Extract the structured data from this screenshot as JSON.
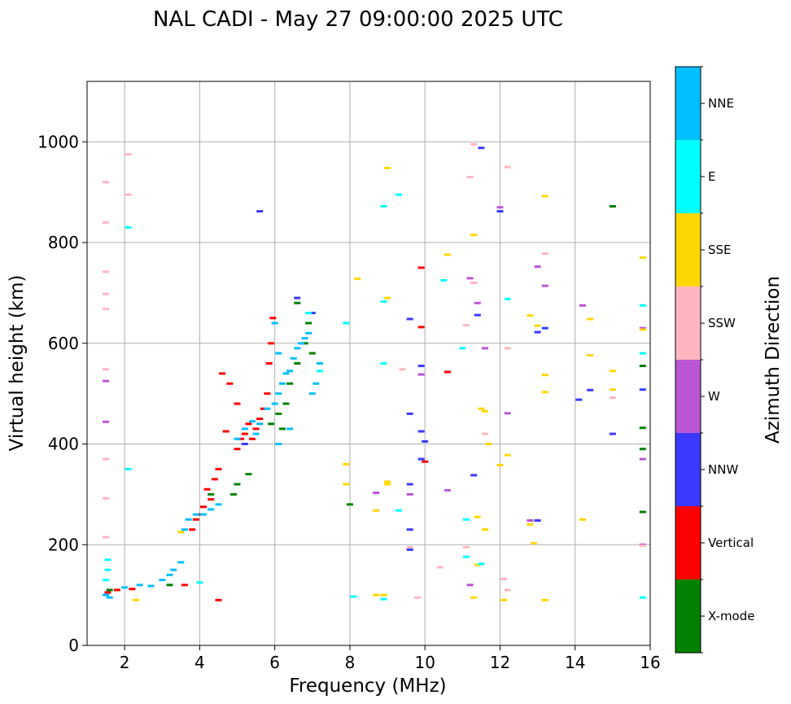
{
  "chart_data": {
    "type": "scatter",
    "title": "NAL CADI - May 27 09:00:00 2025 UTC",
    "xlabel": "Frequency (MHz)",
    "ylabel": "Virtual height (km)",
    "xlim": [
      1,
      16
    ],
    "ylim": [
      0,
      1120
    ],
    "xticks": [
      2,
      4,
      6,
      8,
      10,
      12,
      14,
      16
    ],
    "yticks": [
      0,
      200,
      400,
      600,
      800,
      1000
    ],
    "grid": true,
    "colorbar": {
      "label": "Azimuth Direction",
      "categories": [
        {
          "name": "X-mode",
          "color": "#008000"
        },
        {
          "name": "Vertical",
          "color": "#ff0000"
        },
        {
          "name": "NNW",
          "color": "#3a3aff"
        },
        {
          "name": "W",
          "color": "#ba55d3"
        },
        {
          "name": "SSW",
          "color": "#ffb6c1"
        },
        {
          "name": "SSE",
          "color": "#ffd700"
        },
        {
          "name": "E",
          "color": "#00ffff"
        },
        {
          "name": "NNE",
          "color": "#00bfff"
        }
      ]
    },
    "series": [
      {
        "name": "X-mode",
        "points": [
          [
            1.6,
            110
          ],
          [
            3.2,
            120
          ],
          [
            5.0,
            320
          ],
          [
            5.3,
            340
          ],
          [
            5.9,
            440
          ],
          [
            6.1,
            460
          ],
          [
            6.3,
            480
          ],
          [
            6.4,
            520
          ],
          [
            6.6,
            560
          ],
          [
            6.8,
            600
          ],
          [
            6.9,
            640
          ],
          [
            6.6,
            680
          ],
          [
            7.0,
            580
          ],
          [
            6.2,
            430
          ],
          [
            8.0,
            280
          ],
          [
            15.0,
            872
          ],
          [
            15.8,
            555
          ],
          [
            15.8,
            432
          ],
          [
            15.8,
            390
          ],
          [
            15.8,
            265
          ],
          [
            4.3,
            300
          ],
          [
            4.9,
            300
          ]
        ]
      },
      {
        "name": "Vertical",
        "points": [
          [
            1.55,
            105
          ],
          [
            1.8,
            110
          ],
          [
            2.2,
            112
          ],
          [
            3.6,
            120
          ],
          [
            3.8,
            230
          ],
          [
            3.9,
            250
          ],
          [
            4.0,
            260
          ],
          [
            4.1,
            275
          ],
          [
            4.3,
            290
          ],
          [
            4.4,
            330
          ],
          [
            4.5,
            350
          ],
          [
            4.2,
            310
          ],
          [
            5.0,
            390
          ],
          [
            5.1,
            410
          ],
          [
            5.2,
            420
          ],
          [
            5.3,
            440
          ],
          [
            5.5,
            430
          ],
          [
            5.6,
            450
          ],
          [
            5.7,
            470
          ],
          [
            5.8,
            500
          ],
          [
            5.85,
            560
          ],
          [
            5.9,
            600
          ],
          [
            5.95,
            650
          ],
          [
            4.6,
            540
          ],
          [
            4.8,
            520
          ],
          [
            5.0,
            480
          ],
          [
            9.9,
            750
          ],
          [
            9.9,
            632
          ],
          [
            10.6,
            543
          ],
          [
            10.0,
            365
          ],
          [
            4.5,
            90
          ],
          [
            4.7,
            425
          ],
          [
            5.4,
            410
          ]
        ]
      },
      {
        "name": "NNW",
        "points": [
          [
            5.6,
            862
          ],
          [
            7.0,
            660
          ],
          [
            6.6,
            690
          ],
          [
            9.6,
            648
          ],
          [
            9.9,
            555
          ],
          [
            9.6,
            460
          ],
          [
            9.9,
            425
          ],
          [
            10.0,
            405
          ],
          [
            9.9,
            370
          ],
          [
            9.6,
            320
          ],
          [
            9.6,
            230
          ],
          [
            9.6,
            190
          ],
          [
            11.3,
            338
          ],
          [
            11.5,
            988
          ],
          [
            12.0,
            862
          ],
          [
            13.0,
            622
          ],
          [
            13.2,
            630
          ],
          [
            13.0,
            248
          ],
          [
            14.1,
            488
          ],
          [
            14.4,
            507
          ],
          [
            15.0,
            420
          ],
          [
            15.8,
            508
          ],
          [
            11.4,
            656
          ],
          [
            5.2,
            400
          ]
        ]
      },
      {
        "name": "W",
        "points": [
          [
            1.5,
            525
          ],
          [
            1.5,
            444
          ],
          [
            9.9,
            538
          ],
          [
            11.2,
            729
          ],
          [
            11.4,
            680
          ],
          [
            13.0,
            752
          ],
          [
            13.2,
            714
          ],
          [
            14.2,
            675
          ],
          [
            12.2,
            461
          ],
          [
            10.6,
            308
          ],
          [
            8.7,
            303
          ],
          [
            9.6,
            300
          ],
          [
            11.2,
            120
          ],
          [
            12.0,
            870
          ],
          [
            15.8,
            370
          ],
          [
            15.8,
            200
          ],
          [
            15.8,
            630
          ],
          [
            11.6,
            590
          ],
          [
            12.8,
            248
          ]
        ]
      },
      {
        "name": "SSW",
        "points": [
          [
            1.5,
            920
          ],
          [
            1.5,
            840
          ],
          [
            1.5,
            742
          ],
          [
            1.5,
            698
          ],
          [
            1.5,
            668
          ],
          [
            1.5,
            548
          ],
          [
            1.5,
            370
          ],
          [
            1.5,
            292
          ],
          [
            1.5,
            215
          ],
          [
            2.1,
            975
          ],
          [
            2.1,
            895
          ],
          [
            11.2,
            930
          ],
          [
            11.3,
            995
          ],
          [
            12.2,
            950
          ],
          [
            11.3,
            720
          ],
          [
            11.1,
            636
          ],
          [
            13.2,
            778
          ],
          [
            15.0,
            492
          ],
          [
            12.2,
            590
          ],
          [
            12.1,
            132
          ],
          [
            12.2,
            110
          ],
          [
            11.6,
            420
          ],
          [
            11.1,
            195
          ],
          [
            10.4,
            155
          ],
          [
            9.8,
            95
          ],
          [
            9.4,
            548
          ],
          [
            9.6,
            195
          ],
          [
            15.8,
            198
          ]
        ]
      },
      {
        "name": "SSE",
        "points": [
          [
            9.0,
            948
          ],
          [
            11.3,
            815
          ],
          [
            10.6,
            776
          ],
          [
            13.2,
            892
          ],
          [
            8.2,
            728
          ],
          [
            9.0,
            690
          ],
          [
            12.8,
            655
          ],
          [
            13.0,
            635
          ],
          [
            14.4,
            648
          ],
          [
            14.4,
            576
          ],
          [
            15.0,
            545
          ],
          [
            15.0,
            508
          ],
          [
            15.8,
            770
          ],
          [
            15.8,
            627
          ],
          [
            13.2,
            503
          ],
          [
            13.2,
            537
          ],
          [
            11.5,
            470
          ],
          [
            11.6,
            465
          ],
          [
            11.7,
            400
          ],
          [
            12.0,
            358
          ],
          [
            12.2,
            378
          ],
          [
            13.2,
            90
          ],
          [
            14.2,
            250
          ],
          [
            12.8,
            240
          ],
          [
            12.9,
            203
          ],
          [
            11.4,
            255
          ],
          [
            11.4,
            160
          ],
          [
            11.3,
            95
          ],
          [
            12.1,
            90
          ],
          [
            9.0,
            325
          ],
          [
            9.0,
            320
          ],
          [
            8.7,
            268
          ],
          [
            8.7,
            100
          ],
          [
            8.9,
            100
          ],
          [
            7.9,
            360
          ],
          [
            7.9,
            320
          ],
          [
            11.6,
            230
          ],
          [
            3.5,
            225
          ],
          [
            2.3,
            90
          ]
        ]
      },
      {
        "name": "E",
        "points": [
          [
            1.55,
            170
          ],
          [
            1.55,
            150
          ],
          [
            1.5,
            130
          ],
          [
            2.1,
            830
          ],
          [
            9.3,
            895
          ],
          [
            8.9,
            872
          ],
          [
            8.9,
            683
          ],
          [
            10.5,
            725
          ],
          [
            11.0,
            590
          ],
          [
            12.2,
            688
          ],
          [
            8.9,
            560
          ],
          [
            11.1,
            250
          ],
          [
            11.5,
            162
          ],
          [
            11.1,
            176
          ],
          [
            15.8,
            675
          ],
          [
            15.8,
            580
          ],
          [
            15.8,
            95
          ],
          [
            9.3,
            268
          ],
          [
            8.9,
            92
          ],
          [
            8.1,
            97
          ],
          [
            7.9,
            640
          ],
          [
            7.2,
            545
          ],
          [
            6.9,
            660
          ],
          [
            4.0,
            125
          ],
          [
            2.1,
            350
          ]
        ]
      },
      {
        "name": "NNE",
        "points": [
          [
            1.5,
            100
          ],
          [
            1.6,
            95
          ],
          [
            2.0,
            115
          ],
          [
            2.4,
            120
          ],
          [
            2.7,
            118
          ],
          [
            3.0,
            130
          ],
          [
            3.2,
            140
          ],
          [
            3.3,
            150
          ],
          [
            3.5,
            165
          ],
          [
            3.6,
            230
          ],
          [
            3.7,
            250
          ],
          [
            3.9,
            260
          ],
          [
            4.1,
            260
          ],
          [
            4.3,
            270
          ],
          [
            4.5,
            280
          ],
          [
            5.0,
            410
          ],
          [
            5.2,
            430
          ],
          [
            5.4,
            445
          ],
          [
            5.6,
            440
          ],
          [
            5.8,
            470
          ],
          [
            6.0,
            480
          ],
          [
            6.1,
            500
          ],
          [
            6.2,
            520
          ],
          [
            6.3,
            540
          ],
          [
            6.4,
            545
          ],
          [
            6.5,
            570
          ],
          [
            6.6,
            590
          ],
          [
            6.7,
            600
          ],
          [
            6.8,
            610
          ],
          [
            6.9,
            620
          ],
          [
            7.0,
            500
          ],
          [
            7.1,
            520
          ],
          [
            7.2,
            560
          ],
          [
            6.0,
            640
          ],
          [
            6.1,
            580
          ],
          [
            5.5,
            420
          ],
          [
            6.1,
            400
          ],
          [
            6.4,
            430
          ]
        ]
      }
    ]
  }
}
